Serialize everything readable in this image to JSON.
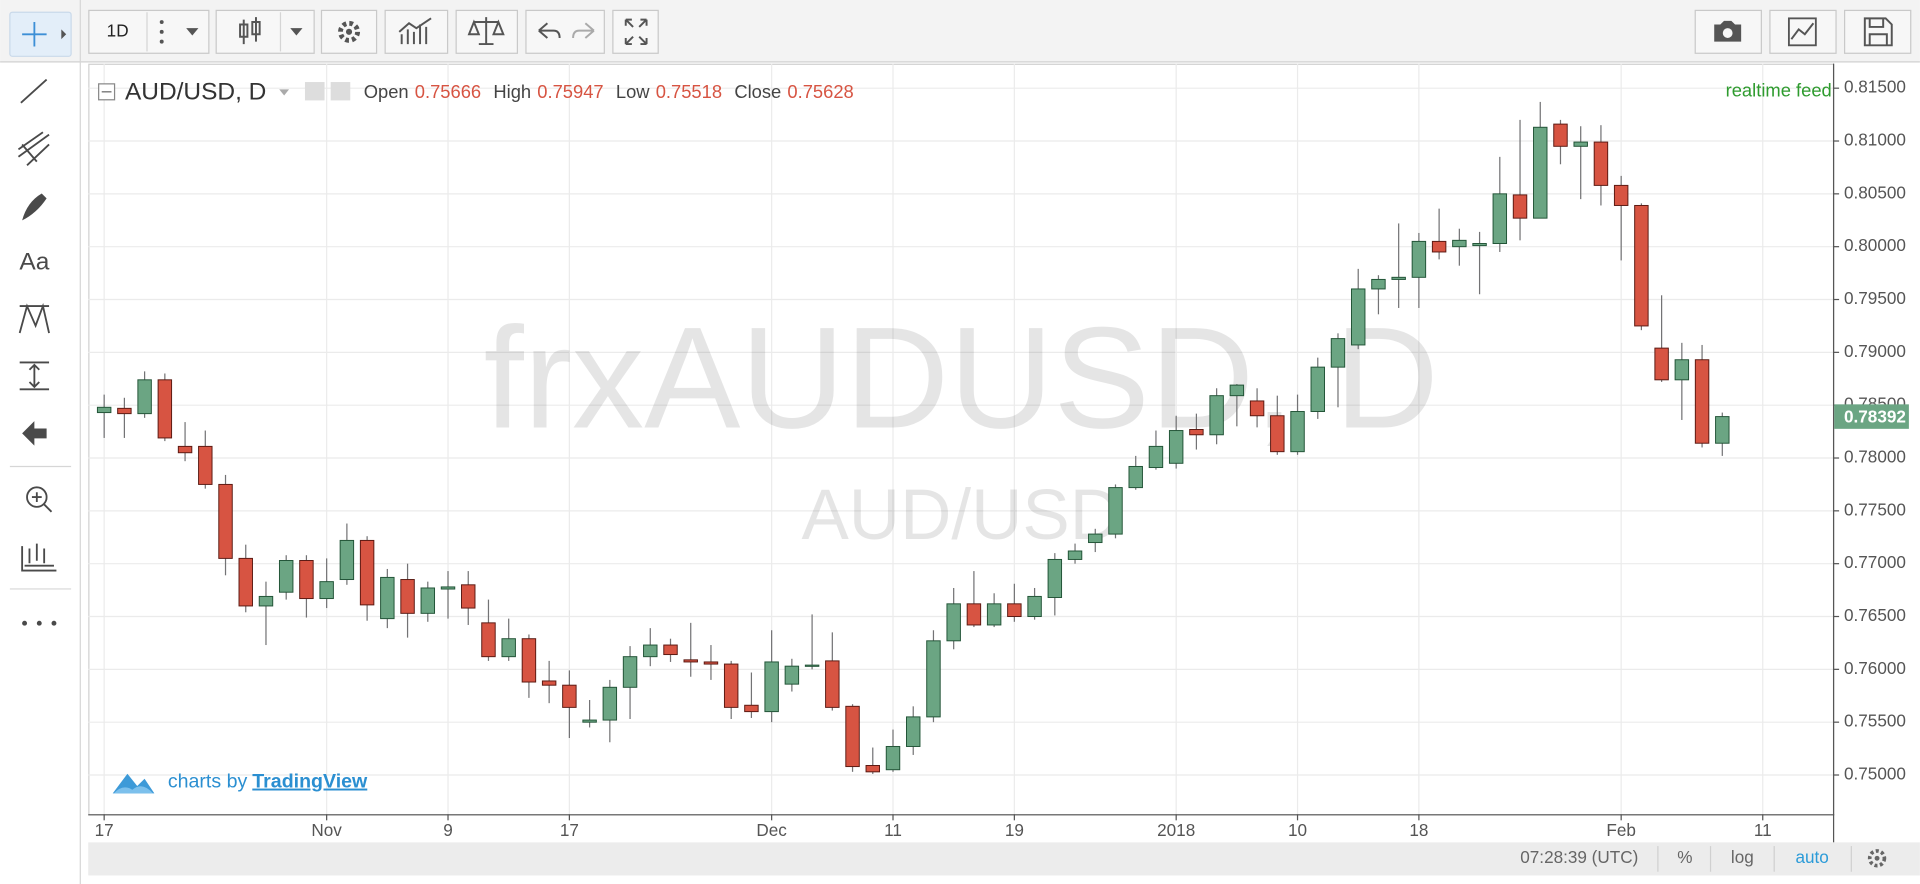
{
  "toolbar": {
    "interval": "1D"
  },
  "sidebar": {
    "text_tool": "Aa"
  },
  "header": {
    "symbol": "AUD/USD, D",
    "readout": [
      {
        "label": "Open",
        "value": 0.75666
      },
      {
        "label": "High",
        "value": 0.75947
      },
      {
        "label": "Low",
        "value": 0.75518
      },
      {
        "label": "Close",
        "value": 0.75628
      }
    ],
    "feed": "realtime feed"
  },
  "watermark": {
    "symbol": "frxAUDUSD, D",
    "pair": "AUD/USD"
  },
  "branding": {
    "prefix": "charts by",
    "name": "TradingView"
  },
  "status_bar": {
    "time": "07:28:39 (UTC)",
    "percent": "%",
    "log": "log",
    "auto": "auto"
  },
  "chart_data": {
    "type": "candlestick",
    "up_color": "#6ba583",
    "down_color": "#d75442",
    "wick_color": "#737375",
    "grid": true,
    "categories": [
      "17",
      null,
      null,
      null,
      null,
      null,
      null,
      null,
      null,
      null,
      null,
      "Nov",
      null,
      null,
      null,
      null,
      null,
      "9",
      null,
      null,
      null,
      null,
      null,
      "17",
      null,
      null,
      null,
      null,
      null,
      null,
      null,
      null,
      null,
      "Dec",
      null,
      null,
      null,
      null,
      null,
      "11",
      null,
      null,
      null,
      null,
      null,
      "19",
      null,
      null,
      null,
      null,
      null,
      null,
      null,
      "2018",
      null,
      null,
      null,
      null,
      null,
      "10",
      null,
      null,
      null,
      null,
      null,
      "18",
      null,
      null,
      null,
      null,
      null,
      null,
      null,
      null,
      null,
      "Feb",
      null,
      null,
      null,
      null,
      null,
      null,
      "11"
    ],
    "open": [
      0.7843,
      0.7847,
      0.7842,
      0.7874,
      0.7811,
      0.7811,
      0.7775,
      0.7705,
      0.766,
      0.7673,
      0.7703,
      0.7667,
      0.7685,
      0.7722,
      0.7648,
      0.7685,
      0.7653,
      0.7676,
      0.768,
      0.7644,
      0.7612,
      0.7629,
      0.7589,
      0.7585,
      0.755,
      0.7552,
      0.7583,
      0.7612,
      0.7623,
      0.7609,
      0.7607,
      0.7605,
      0.7566,
      0.756,
      0.7586,
      0.7603,
      0.7608,
      0.7565,
      0.7509,
      0.7505,
      0.7527,
      0.7555,
      0.7627,
      0.7662,
      0.7642,
      0.7662,
      0.765,
      0.7668,
      0.7704,
      0.772,
      0.7728,
      0.7772,
      0.7791,
      0.7795,
      0.7827,
      0.7822,
      0.7859,
      0.7854,
      0.784,
      0.7806,
      0.7844,
      0.7886,
      0.7907,
      0.796,
      0.7969,
      0.7971,
      0.8005,
      0.8,
      0.8001,
      0.8003,
      0.8049,
      0.8027,
      0.8116,
      0.8095,
      0.8099,
      0.8058,
      0.8039,
      0.7904,
      0.7874,
      0.7893,
      0.7814,
      null,
      null
    ],
    "high": [
      0.786,
      0.7857,
      0.7882,
      0.788,
      0.7834,
      0.7826,
      0.7784,
      0.7718,
      0.7683,
      0.7708,
      0.7708,
      0.7705,
      0.7738,
      0.7726,
      0.7695,
      0.77,
      0.7683,
      0.7693,
      0.7693,
      0.7666,
      0.7648,
      0.7633,
      0.7608,
      0.7599,
      0.7571,
      0.759,
      0.7622,
      0.7639,
      0.7629,
      0.7644,
      0.7623,
      0.7608,
      0.7597,
      0.7637,
      0.761,
      0.7652,
      0.7635,
      0.7567,
      0.7526,
      0.7543,
      0.7565,
      0.7637,
      0.7677,
      0.7693,
      0.7672,
      0.7681,
      0.7677,
      0.771,
      0.7719,
      0.7733,
      0.7775,
      0.7802,
      0.7826,
      0.784,
      0.7842,
      0.7866,
      0.787,
      0.7866,
      0.7859,
      0.786,
      0.7895,
      0.7918,
      0.7979,
      0.7973,
      0.8022,
      0.8013,
      0.8036,
      0.8017,
      0.8014,
      0.8085,
      0.812,
      0.8137,
      0.812,
      0.8114,
      0.8115,
      0.8067,
      0.8041,
      0.7954,
      0.7909,
      0.7907,
      0.7843,
      null,
      null
    ],
    "low": [
      0.7819,
      0.7819,
      0.7838,
      0.7816,
      0.7797,
      0.7771,
      0.7689,
      0.7654,
      0.7623,
      0.7666,
      0.7649,
      0.7658,
      0.768,
      0.7646,
      0.7639,
      0.763,
      0.7645,
      0.7648,
      0.7642,
      0.7608,
      0.7608,
      0.7573,
      0.7568,
      0.7535,
      0.7545,
      0.7531,
      0.7553,
      0.7603,
      0.7607,
      0.7593,
      0.759,
      0.7553,
      0.7554,
      0.755,
      0.7579,
      0.76,
      0.7561,
      0.7503,
      0.7501,
      0.7503,
      0.7519,
      0.755,
      0.7619,
      0.764,
      0.764,
      0.7645,
      0.7647,
      0.7651,
      0.77,
      0.7711,
      0.7724,
      0.777,
      0.7789,
      0.779,
      0.7808,
      0.7813,
      0.783,
      0.7829,
      0.7803,
      0.7803,
      0.7837,
      0.7848,
      0.7903,
      0.7936,
      0.7942,
      0.7942,
      0.7988,
      0.7982,
      0.7955,
      0.7995,
      0.8006,
      0.8027,
      0.8078,
      0.8045,
      0.8039,
      0.7987,
      0.7921,
      0.7872,
      0.7836,
      0.781,
      0.7802,
      null,
      null
    ],
    "close": [
      0.7848,
      0.7842,
      0.7874,
      0.7819,
      0.7805,
      0.7775,
      0.7705,
      0.766,
      0.7669,
      0.7703,
      0.7667,
      0.7683,
      0.7722,
      0.7661,
      0.7687,
      0.7653,
      0.7677,
      0.7678,
      0.7658,
      0.7612,
      0.7629,
      0.7588,
      0.7585,
      0.7564,
      0.7552,
      0.7583,
      0.7612,
      0.7623,
      0.7614,
      0.7607,
      0.7605,
      0.7564,
      0.756,
      0.7607,
      0.7603,
      0.7604,
      0.7564,
      0.7508,
      0.7503,
      0.7527,
      0.7555,
      0.7627,
      0.7662,
      0.7642,
      0.7662,
      0.765,
      0.7669,
      0.7704,
      0.7712,
      0.7728,
      0.7772,
      0.7792,
      0.7811,
      0.7826,
      0.7822,
      0.7859,
      0.7869,
      0.784,
      0.7806,
      0.7844,
      0.7886,
      0.7913,
      0.796,
      0.7969,
      0.7971,
      0.8005,
      0.7995,
      0.8006,
      0.8003,
      0.805,
      0.8027,
      0.8113,
      0.8095,
      0.8099,
      0.8058,
      0.8039,
      0.7925,
      0.7874,
      0.7893,
      0.7814,
      0.78392,
      null,
      null
    ],
    "last_price": 0.78392,
    "ylim": [
      0.74629,
      0.81732
    ],
    "yticks": [
      {
        "value": 0.75,
        "label": "0.75000"
      },
      {
        "value": 0.755,
        "label": "0.75500"
      },
      {
        "value": 0.76,
        "label": "0.76000"
      },
      {
        "value": 0.765,
        "label": "0.76500"
      },
      {
        "value": 0.77,
        "label": "0.77000"
      },
      {
        "value": 0.775,
        "label": "0.77500"
      },
      {
        "value": 0.78,
        "label": "0.78000"
      },
      {
        "value": 0.785,
        "label": "0.78500"
      },
      {
        "value": 0.79,
        "label": "0.79000"
      },
      {
        "value": 0.795,
        "label": "0.79500"
      },
      {
        "value": 0.8,
        "label": "0.80000"
      },
      {
        "value": 0.805,
        "label": "0.80500"
      },
      {
        "value": 0.81,
        "label": "0.81000"
      },
      {
        "value": 0.815,
        "label": "0.81500"
      }
    ]
  }
}
